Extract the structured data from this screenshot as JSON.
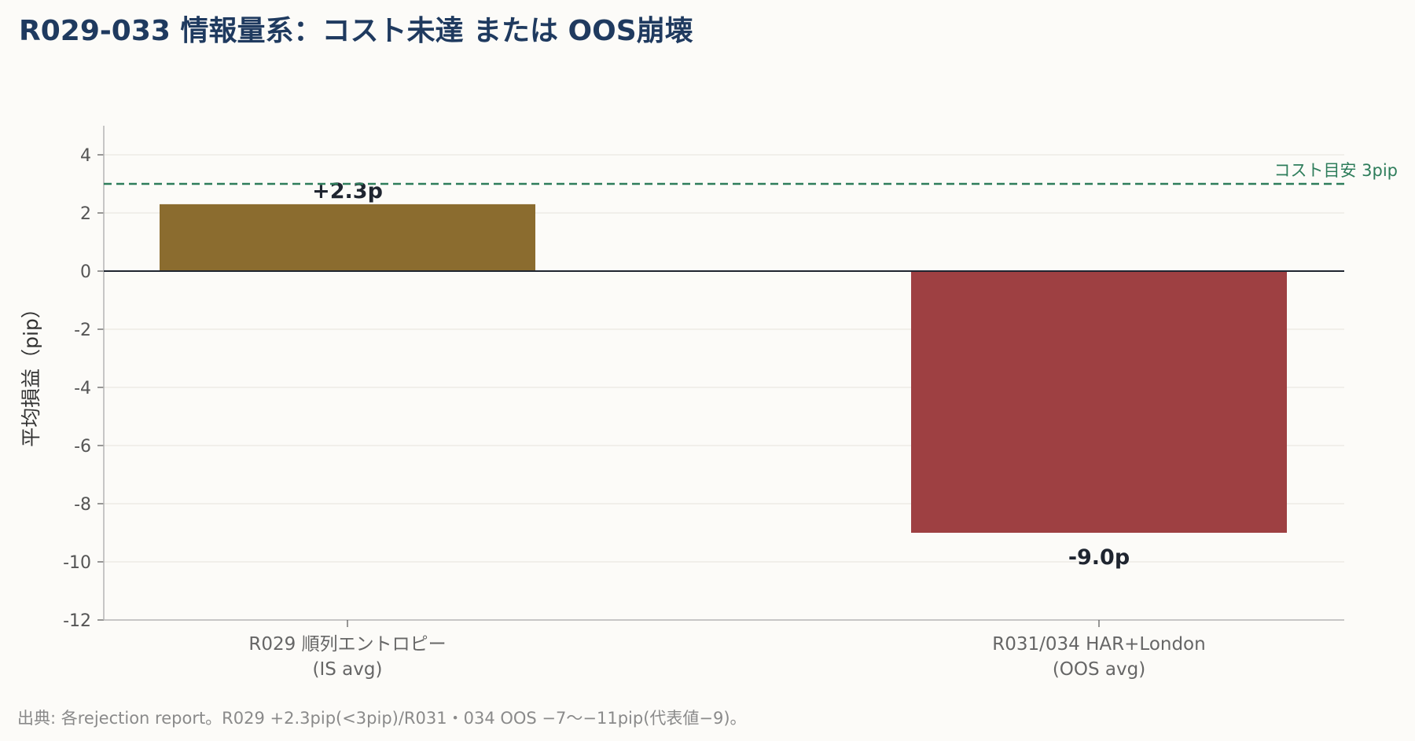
{
  "title": "R029-033 情報量系：コスト未達 または OOS崩壊",
  "source_note": "出典: 各rejection report。R029 +2.3pip(<3pip)/R031・034 OOS −7〜−11pip(代表値−9)。",
  "chart_data": {
    "type": "bar",
    "title": "R029-033 情報量系：コスト未達 または OOS崩壊",
    "ylabel": "平均損益（pip）",
    "xlabel": "",
    "ylim": [
      -12,
      5
    ],
    "yticks": [
      4,
      2,
      0,
      -2,
      -4,
      -6,
      -8,
      -10,
      -12
    ],
    "grid": true,
    "categories": [
      [
        "R029 順列エントロピー",
        "(IS avg)"
      ],
      [
        "R031/034 HAR+London",
        "(OOS avg)"
      ]
    ],
    "values": [
      2.3,
      -9.0
    ],
    "value_labels": [
      "+2.3p",
      "-9.0p"
    ],
    "bar_colors": [
      "#8b6c2f",
      "#9e4042"
    ],
    "reference_line": {
      "value": 3,
      "label": "コスト目安 3pip",
      "color": "#2e7d5b"
    }
  }
}
